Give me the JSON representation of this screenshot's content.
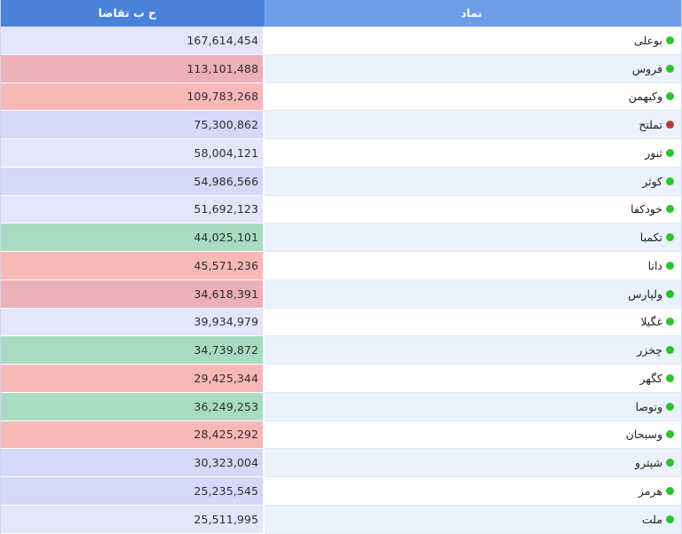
{
  "header": {
    "bid_label": "ح ب تقاضا",
    "symbol_label": "نماد"
  },
  "colors": {
    "header_dark": "#4a82db",
    "header_light": "#6f9ce6",
    "status_green": "#2ec22e",
    "status_red": "#b83a3a",
    "cell_lavender": "#e4e5fb",
    "cell_lavender_dark": "#d6d8fa",
    "cell_pink": "#ecb0b8",
    "cell_salmon": "#f9b8b8",
    "cell_green": "#a8dcc2"
  },
  "rows": [
    {
      "symbol": "بوعلی",
      "value": "167,614,454",
      "status": "green",
      "tone": "#e4e5fb"
    },
    {
      "symbol": "فروس",
      "value": "113,101,488",
      "status": "green",
      "tone": "#ecb0b8"
    },
    {
      "symbol": "وکبهمن",
      "value": "109,783,268",
      "status": "green",
      "tone": "#f9b8b8"
    },
    {
      "symbol": "تملتح",
      "value": "75,300,862",
      "status": "red",
      "tone": "#d6d8fa"
    },
    {
      "symbol": "ثنور",
      "value": "58,004,121",
      "status": "green",
      "tone": "#e4e5fb"
    },
    {
      "symbol": "کوثر",
      "value": "54,986,566",
      "status": "green",
      "tone": "#d6d8fa"
    },
    {
      "symbol": "خودکفا",
      "value": "51,692,123",
      "status": "green",
      "tone": "#e4e5fb"
    },
    {
      "symbol": "تکمبا",
      "value": "44,025,101",
      "status": "green",
      "tone": "#a8dcc2"
    },
    {
      "symbol": "دانا",
      "value": "45,571,236",
      "status": "green",
      "tone": "#f9b8b8"
    },
    {
      "symbol": "ولپارس",
      "value": "34,618,391",
      "status": "green",
      "tone": "#ecb0b8"
    },
    {
      "symbol": "غگیلا",
      "value": "39,934,979",
      "status": "green",
      "tone": "#e4e5fb"
    },
    {
      "symbol": "چخزر",
      "value": "34,739,872",
      "status": "green",
      "tone": "#a8dcc2"
    },
    {
      "symbol": "کگهر",
      "value": "29,425,344",
      "status": "green",
      "tone": "#f9b8b8"
    },
    {
      "symbol": "وتوصا",
      "value": "36,249,253",
      "status": "green",
      "tone": "#a8dcc2"
    },
    {
      "symbol": "وسبحان",
      "value": "28,425,292",
      "status": "green",
      "tone": "#f9b8b8"
    },
    {
      "symbol": "شپترو",
      "value": "30,323,004",
      "status": "green",
      "tone": "#d6d8fa"
    },
    {
      "symbol": "هرمز",
      "value": "25,235,545",
      "status": "green",
      "tone": "#d6d8fa"
    },
    {
      "symbol": "ملت",
      "value": "25,511,995",
      "status": "green",
      "tone": "#e4e5fb"
    }
  ]
}
